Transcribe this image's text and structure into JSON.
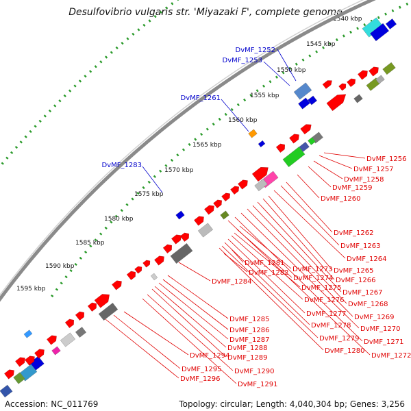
{
  "title": "Desulfovibrio vulgaris str. 'Miyazaki F', complete genome",
  "accession": "Accession: NC_011769",
  "topology": "Topology: circular; Length: 4,040,304 bp; Genes: 3,256",
  "colors": {
    "backbone": "#808080",
    "forward_label": "#0000cc",
    "reverse_label": "#e00000",
    "tick": "#1a8c1a"
  },
  "ticks": [
    {
      "label": "1540 kbp",
      "pos": 1540
    },
    {
      "label": "1545 kbp",
      "pos": 1545
    },
    {
      "label": "1550 kbp",
      "pos": 1550
    },
    {
      "label": "1555 kbp",
      "pos": 1555
    },
    {
      "label": "1560 kbp",
      "pos": 1560
    },
    {
      "label": "1565 kbp",
      "pos": 1565
    },
    {
      "label": "1570 kbp",
      "pos": 1570
    },
    {
      "label": "1575 kbp",
      "pos": 1575
    },
    {
      "label": "1580 kbp",
      "pos": 1580
    },
    {
      "label": "1585 kbp",
      "pos": 1585
    },
    {
      "label": "1590 kbp",
      "pos": 1590
    },
    {
      "label": "1595 kbp",
      "pos": 1595
    }
  ],
  "blue_labels": [
    "DvMF_1252",
    "DvMF_1253",
    "DvMF_1261",
    "DvMF_1283"
  ],
  "red_labels": [
    "DvMF_1256",
    "DvMF_1257",
    "DvMF_1258",
    "DvMF_1259",
    "DvMF_1260",
    "DvMF_1262",
    "DvMF_1263",
    "DvMF_1264",
    "DvMF_1265",
    "DvMF_1266",
    "DvMF_1267",
    "DvMF_1268",
    "DvMF_1269",
    "DvMF_1270",
    "DvMF_1271",
    "DvMF_1272",
    "DvMF_1273",
    "DvMF_1274",
    "DvMF_1275",
    "DvMF_1276",
    "DvMF_1277",
    "DvMF_1278",
    "DvMF_1279",
    "DvMF_1280",
    "DvMF_1281",
    "DvMF_1282",
    "DvMF_1284",
    "DvMF_1285",
    "DvMF_1286",
    "DvMF_1287",
    "DvMF_1288",
    "DvMF_1289",
    "DvMF_1290",
    "DvMF_1291",
    "DvMF_1294",
    "DvMF_1295",
    "DvMF_1296"
  ]
}
